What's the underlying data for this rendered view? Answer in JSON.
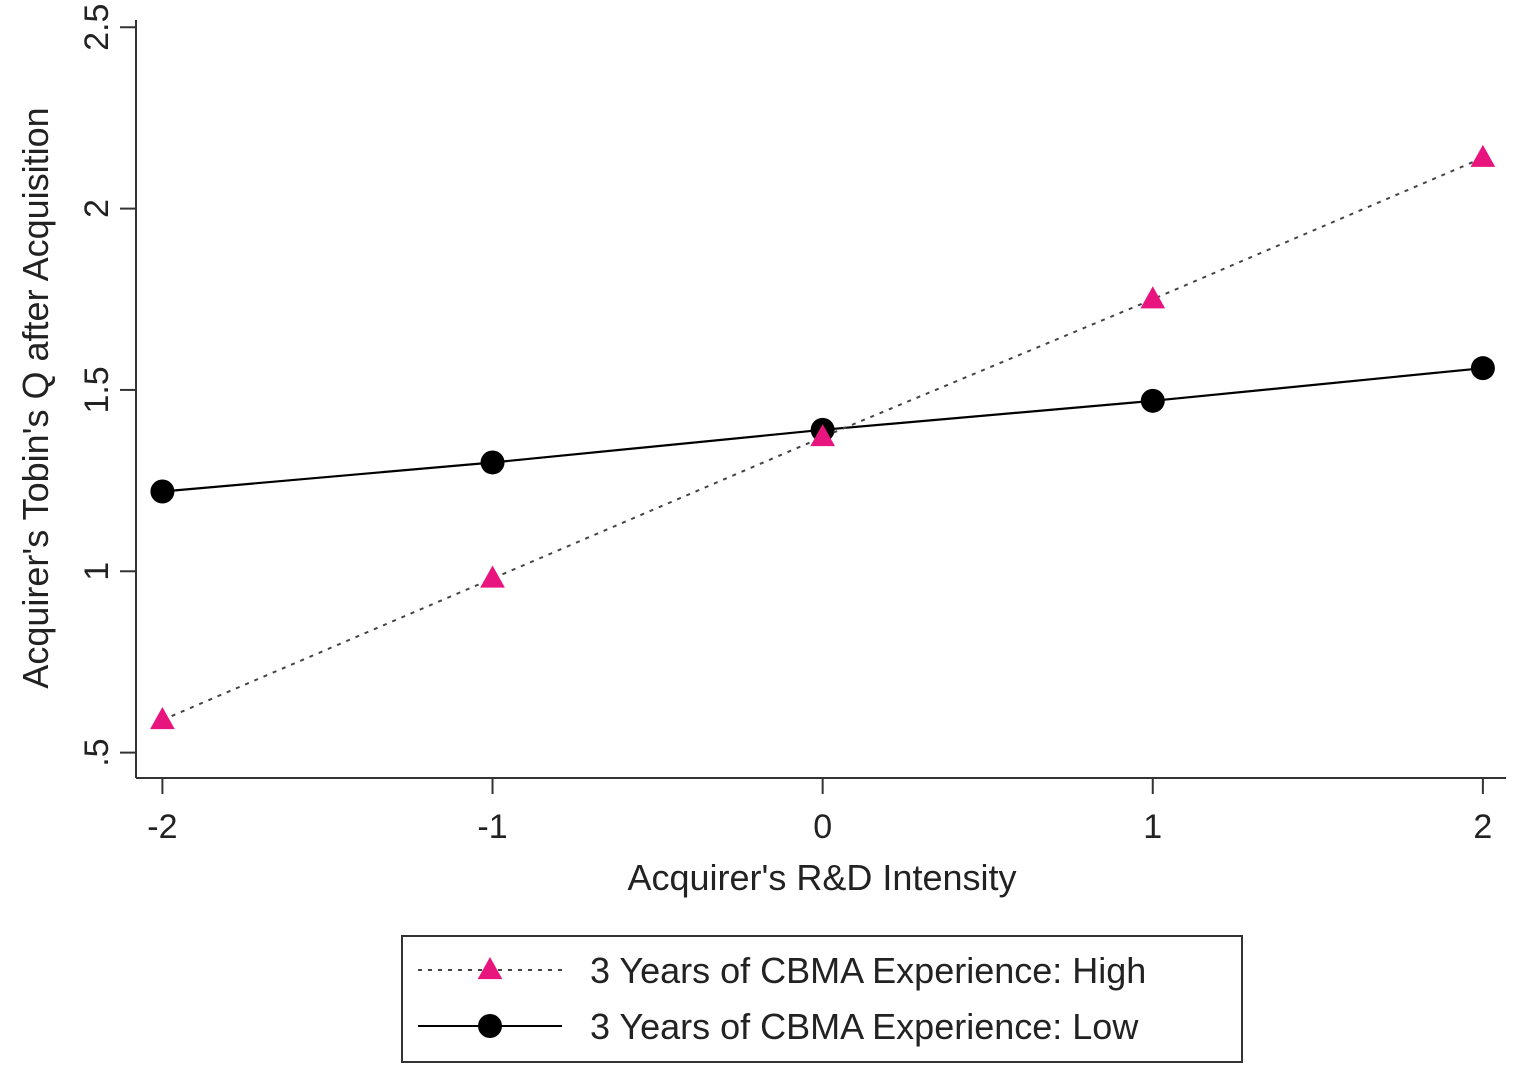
{
  "chart_data": {
    "type": "line",
    "title": "",
    "xlabel": "Acquirer's R&D Intensity",
    "ylabel": "Acquirer's Tobin's Q after Acquisition",
    "x": [
      -2,
      -1,
      0,
      1,
      2
    ],
    "xticks": [
      -2,
      -1,
      0,
      1,
      2
    ],
    "xtick_labels": [
      "-2",
      "-1",
      "0",
      "1",
      "2"
    ],
    "yticks": [
      0.5,
      1,
      1.5,
      2,
      2.5
    ],
    "ytick_labels": [
      ".5",
      "1",
      "1.5",
      "2",
      "2.5"
    ],
    "xlim": [
      -2.08,
      2.07
    ],
    "ylim": [
      0.43,
      2.52
    ],
    "grid": false,
    "legend_position": "bottom",
    "series": [
      {
        "name": "3 Years of CBMA Experience: High",
        "values": [
          0.59,
          0.98,
          1.37,
          1.75,
          2.14
        ],
        "color": "#e8157f",
        "line_style": "dotted",
        "line_color": "#444444",
        "marker": "triangle"
      },
      {
        "name": "3 Years of CBMA Experience: Low",
        "values": [
          1.22,
          1.3,
          1.39,
          1.47,
          1.56
        ],
        "color": "#000000",
        "line_style": "solid",
        "line_color": "#000000",
        "marker": "circle"
      }
    ]
  }
}
